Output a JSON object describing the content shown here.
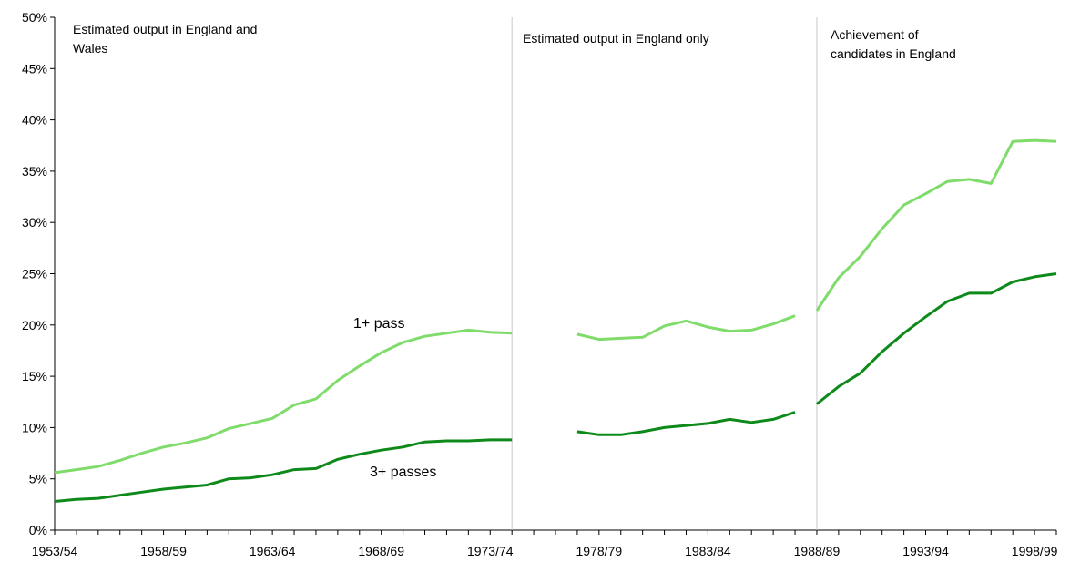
{
  "chart_data": {
    "type": "line",
    "title": "",
    "xlabel": "",
    "ylabel": "",
    "ylim": [
      0,
      50
    ],
    "y_ticks": [
      "0%",
      "5%",
      "10%",
      "15%",
      "20%",
      "25%",
      "30%",
      "35%",
      "40%",
      "45%",
      "50%"
    ],
    "x_tick_labels": [
      "1953/54",
      "1958/59",
      "1963/64",
      "1968/69",
      "1973/74",
      "1978/79",
      "1983/84",
      "1988/89",
      "1993/94",
      "1998/99"
    ],
    "x_tick_years": [
      1953,
      1958,
      1963,
      1968,
      1973,
      1978,
      1983,
      1988,
      1993,
      1998
    ],
    "x_range": [
      1953,
      1999
    ],
    "section_dividers": [
      1974,
      1988
    ],
    "annotations": {
      "england_wales": [
        "Estimated output in England and",
        "Wales"
      ],
      "england_only": [
        "Estimated output in England only"
      ],
      "achievement": [
        "Achievement of",
        "candidates in England"
      ]
    },
    "grid": false,
    "legend": "none",
    "series": [
      {
        "name": "1+ pass",
        "color": "#7fdc6b",
        "segments": [
          {
            "x": [
              1953,
              1954,
              1955,
              1956,
              1957,
              1958,
              1959,
              1960,
              1961,
              1962,
              1963,
              1964,
              1965,
              1966,
              1967,
              1968,
              1969,
              1970,
              1971,
              1972,
              1973,
              1974
            ],
            "values": [
              5.6,
              5.9,
              6.2,
              6.8,
              7.5,
              8.1,
              8.5,
              9.0,
              9.9,
              10.4,
              10.9,
              12.2,
              12.8,
              14.6,
              16.0,
              17.3,
              18.3,
              18.9,
              19.2,
              19.5,
              19.3,
              19.2
            ]
          },
          {
            "x": [
              1977,
              1978,
              1979,
              1980,
              1981,
              1982,
              1983,
              1984,
              1985,
              1986,
              1987
            ],
            "values": [
              19.1,
              18.6,
              18.7,
              18.8,
              19.9,
              20.4,
              19.8,
              19.4,
              19.5,
              20.1,
              20.9
            ]
          },
          {
            "x": [
              1988,
              1989,
              1990,
              1991,
              1992,
              1993,
              1994,
              1995,
              1996,
              1997,
              1998,
              1999
            ],
            "values": [
              21.4,
              24.6,
              26.7,
              29.4,
              31.7,
              32.8,
              34.0,
              34.2,
              33.8,
              37.9,
              38.0,
              37.9
            ]
          }
        ]
      },
      {
        "name": "3+ passes",
        "color": "#0e8a1b",
        "segments": [
          {
            "x": [
              1953,
              1954,
              1955,
              1956,
              1957,
              1958,
              1959,
              1960,
              1961,
              1962,
              1963,
              1964,
              1965,
              1966,
              1967,
              1968,
              1969,
              1970,
              1971,
              1972,
              1973,
              1974
            ],
            "values": [
              2.8,
              3.0,
              3.1,
              3.4,
              3.7,
              4.0,
              4.2,
              4.4,
              5.0,
              5.1,
              5.4,
              5.9,
              6.0,
              6.9,
              7.4,
              7.8,
              8.1,
              8.6,
              8.7,
              8.7,
              8.8,
              8.8
            ]
          },
          {
            "x": [
              1977,
              1978,
              1979,
              1980,
              1981,
              1982,
              1983,
              1984,
              1985,
              1986,
              1987
            ],
            "values": [
              9.6,
              9.3,
              9.3,
              9.6,
              10.0,
              10.2,
              10.4,
              10.8,
              10.5,
              10.8,
              11.5
            ]
          },
          {
            "x": [
              1988,
              1989,
              1990,
              1991,
              1992,
              1993,
              1994,
              1995,
              1996,
              1997,
              1998,
              1999
            ],
            "values": [
              12.3,
              14.0,
              15.3,
              17.4,
              19.2,
              20.8,
              22.3,
              23.1,
              23.1,
              24.2,
              24.7,
              25.0
            ]
          }
        ]
      }
    ]
  }
}
